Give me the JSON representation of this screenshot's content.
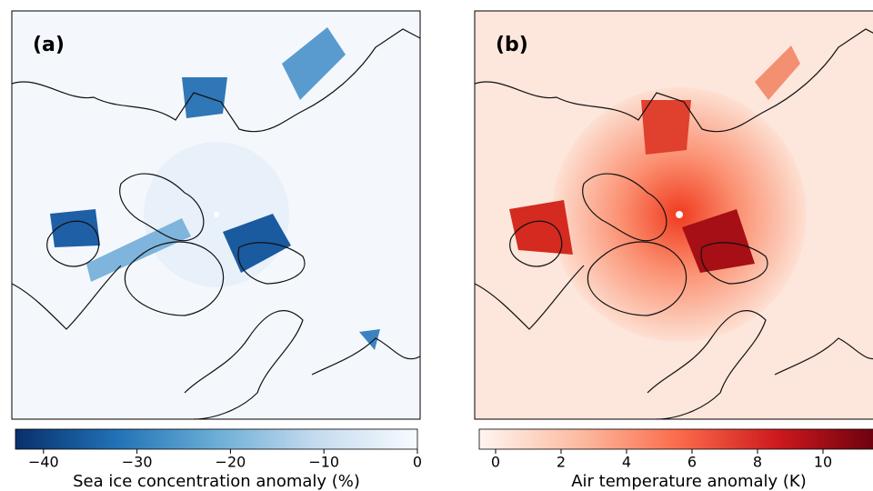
{
  "panels": [
    {
      "label": "(a)",
      "colorbar": {
        "label": "Sea ice concentration anomaly (%)",
        "lim": [
          -43,
          0
        ],
        "ticks": [
          {
            "value": -40,
            "label": "−40"
          },
          {
            "value": -30,
            "label": "−30"
          },
          {
            "value": -20,
            "label": "−20"
          },
          {
            "value": -10,
            "label": "−10"
          },
          0
        ]
      }
    },
    {
      "label": "(b)",
      "colorbar": {
        "label": "Air temperature anomaly (K)",
        "lim": [
          -0.5,
          11.75
        ],
        "ticks": [
          0,
          2,
          4,
          6,
          8,
          10
        ]
      }
    }
  ]
}
